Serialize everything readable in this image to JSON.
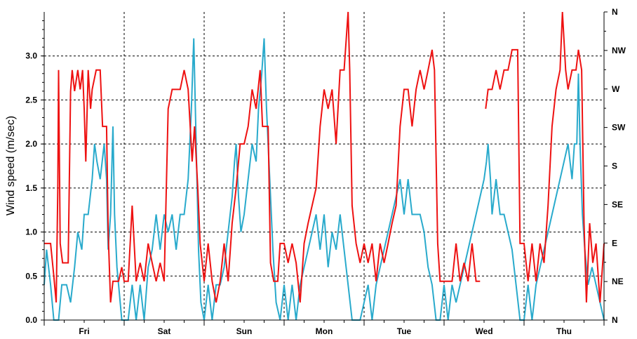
{
  "chart_data": {
    "type": "line",
    "title": "",
    "ylabel": "Wind speed (m/sec)",
    "ylim": [
      0,
      3.5
    ],
    "yticks": [
      0.0,
      0.5,
      1.0,
      1.5,
      2.0,
      2.5,
      3.0
    ],
    "ytick_labels": [
      "0.0",
      "0.5",
      "1.0",
      "1.5",
      "2.0",
      "2.5",
      "3.0"
    ],
    "y2_ticks": [
      "N",
      "NE",
      "E",
      "SE",
      "S",
      "SW",
      "W",
      "NW",
      "N"
    ],
    "y2_range_degrees": [
      0,
      360
    ],
    "xlim_days": [
      0,
      7
    ],
    "days": [
      "Fri",
      "Sat",
      "Sun",
      "Mon",
      "Tue",
      "Wed",
      "Thu"
    ],
    "grid": true,
    "colors": {
      "speed": "#29aacc",
      "direction": "#ee1111"
    },
    "series": [
      {
        "axis": "left",
        "color": "#29aacc",
        "points": [
          [
            0.0,
            0.4
          ],
          [
            0.03,
            0.8
          ],
          [
            0.08,
            0.4
          ],
          [
            0.12,
            0.0
          ],
          [
            0.18,
            0.0
          ],
          [
            0.22,
            0.4
          ],
          [
            0.28,
            0.4
          ],
          [
            0.33,
            0.2
          ],
          [
            0.38,
            0.6
          ],
          [
            0.42,
            1.0
          ],
          [
            0.47,
            0.8
          ],
          [
            0.5,
            1.2
          ],
          [
            0.55,
            1.2
          ],
          [
            0.6,
            1.6
          ],
          [
            0.63,
            2.0
          ],
          [
            0.66,
            1.8
          ],
          [
            0.7,
            1.6
          ],
          [
            0.75,
            2.0
          ],
          [
            0.78,
            1.6
          ],
          [
            0.8,
            0.8
          ],
          [
            0.83,
            1.2
          ],
          [
            0.86,
            2.2
          ],
          [
            0.88,
            1.2
          ],
          [
            0.91,
            0.6
          ],
          [
            0.94,
            0.3
          ],
          [
            0.97,
            0.0
          ],
          [
            1.05,
            0.0
          ],
          [
            1.1,
            0.4
          ],
          [
            1.15,
            0.0
          ],
          [
            1.2,
            0.4
          ],
          [
            1.25,
            0.0
          ],
          [
            1.3,
            0.6
          ],
          [
            1.35,
            0.8
          ],
          [
            1.4,
            1.2
          ],
          [
            1.45,
            0.8
          ],
          [
            1.5,
            1.2
          ],
          [
            1.55,
            1.0
          ],
          [
            1.6,
            1.2
          ],
          [
            1.65,
            0.8
          ],
          [
            1.7,
            1.2
          ],
          [
            1.75,
            1.2
          ],
          [
            1.8,
            1.6
          ],
          [
            1.84,
            2.4
          ],
          [
            1.87,
            3.2
          ],
          [
            1.9,
            2.0
          ],
          [
            1.93,
            0.8
          ],
          [
            1.96,
            0.2
          ],
          [
            2.0,
            0.0
          ],
          [
            2.05,
            0.4
          ],
          [
            2.1,
            0.0
          ],
          [
            2.15,
            0.4
          ],
          [
            2.2,
            0.4
          ],
          [
            2.25,
            0.6
          ],
          [
            2.3,
            1.0
          ],
          [
            2.35,
            1.4
          ],
          [
            2.38,
            1.8
          ],
          [
            2.4,
            2.0
          ],
          [
            2.43,
            1.4
          ],
          [
            2.46,
            1.0
          ],
          [
            2.5,
            1.2
          ],
          [
            2.55,
            1.6
          ],
          [
            2.6,
            2.0
          ],
          [
            2.65,
            1.8
          ],
          [
            2.68,
            2.4
          ],
          [
            2.72,
            2.8
          ],
          [
            2.75,
            3.2
          ],
          [
            2.78,
            2.4
          ],
          [
            2.82,
            1.6
          ],
          [
            2.86,
            0.8
          ],
          [
            2.9,
            0.2
          ],
          [
            2.95,
            0.0
          ],
          [
            3.0,
            0.4
          ],
          [
            3.05,
            0.0
          ],
          [
            3.1,
            0.4
          ],
          [
            3.15,
            0.0
          ],
          [
            3.2,
            0.4
          ],
          [
            3.25,
            0.6
          ],
          [
            3.3,
            0.8
          ],
          [
            3.35,
            1.0
          ],
          [
            3.4,
            1.2
          ],
          [
            3.45,
            0.8
          ],
          [
            3.5,
            1.2
          ],
          [
            3.55,
            0.6
          ],
          [
            3.6,
            1.0
          ],
          [
            3.65,
            0.8
          ],
          [
            3.7,
            1.2
          ],
          [
            3.75,
            0.8
          ],
          [
            3.8,
            0.4
          ],
          [
            3.85,
            0.0
          ],
          [
            3.9,
            0.0
          ],
          [
            3.95,
            0.0
          ],
          [
            4.0,
            0.2
          ],
          [
            4.05,
            0.4
          ],
          [
            4.1,
            0.0
          ],
          [
            4.15,
            0.4
          ],
          [
            4.2,
            0.6
          ],
          [
            4.25,
            0.8
          ],
          [
            4.3,
            1.0
          ],
          [
            4.35,
            1.2
          ],
          [
            4.4,
            1.4
          ],
          [
            4.45,
            1.6
          ],
          [
            4.5,
            1.2
          ],
          [
            4.55,
            1.6
          ],
          [
            4.6,
            1.2
          ],
          [
            4.65,
            1.2
          ],
          [
            4.7,
            1.2
          ],
          [
            4.75,
            1.0
          ],
          [
            4.8,
            0.6
          ],
          [
            4.85,
            0.4
          ],
          [
            4.9,
            0.0
          ],
          [
            4.95,
            0.0
          ],
          [
            5.0,
            0.4
          ],
          [
            5.05,
            0.0
          ],
          [
            5.1,
            0.4
          ],
          [
            5.15,
            0.2
          ],
          [
            5.2,
            0.4
          ],
          [
            5.25,
            0.6
          ],
          [
            5.3,
            0.8
          ],
          [
            5.35,
            1.0
          ],
          [
            5.4,
            1.2
          ],
          [
            5.45,
            1.4
          ],
          [
            5.5,
            1.6
          ],
          [
            5.53,
            1.8
          ],
          [
            5.55,
            2.0
          ],
          [
            5.58,
            1.6
          ],
          [
            5.6,
            1.2
          ],
          [
            5.65,
            1.6
          ],
          [
            5.7,
            1.2
          ],
          [
            5.75,
            1.2
          ],
          [
            5.8,
            1.0
          ],
          [
            5.85,
            0.8
          ],
          [
            5.9,
            0.4
          ],
          [
            5.95,
            0.0
          ],
          [
            6.0,
            0.0
          ],
          [
            6.05,
            0.4
          ],
          [
            6.1,
            0.0
          ],
          [
            6.15,
            0.4
          ],
          [
            6.2,
            0.6
          ],
          [
            6.25,
            0.8
          ],
          [
            6.3,
            1.0
          ],
          [
            6.35,
            1.2
          ],
          [
            6.4,
            1.4
          ],
          [
            6.45,
            1.6
          ],
          [
            6.5,
            1.8
          ],
          [
            6.55,
            2.0
          ],
          [
            6.6,
            1.6
          ],
          [
            6.63,
            2.0
          ],
          [
            6.66,
            2.0
          ],
          [
            6.68,
            2.8
          ],
          [
            6.7,
            2.0
          ],
          [
            6.73,
            1.2
          ],
          [
            6.76,
            0.8
          ],
          [
            6.8,
            0.4
          ],
          [
            6.85,
            0.6
          ],
          [
            6.9,
            0.4
          ],
          [
            6.95,
            0.2
          ],
          [
            7.0,
            0.0
          ]
        ]
      },
      {
        "axis": "right",
        "color": "#ee1111",
        "points": [
          [
            0.0,
            0.87
          ],
          [
            0.08,
            0.87
          ],
          [
            0.12,
            0.5
          ],
          [
            0.15,
            0.2
          ],
          [
            0.17,
            1.5
          ],
          [
            0.18,
            2.84
          ],
          [
            0.2,
            0.87
          ],
          [
            0.23,
            0.65
          ],
          [
            0.3,
            0.65
          ],
          [
            0.33,
            2.6
          ],
          [
            0.35,
            2.84
          ],
          [
            0.38,
            2.6
          ],
          [
            0.42,
            2.84
          ],
          [
            0.45,
            2.62
          ],
          [
            0.48,
            2.84
          ],
          [
            0.5,
            2.4
          ],
          [
            0.52,
            1.8
          ],
          [
            0.55,
            2.84
          ],
          [
            0.58,
            2.4
          ],
          [
            0.6,
            2.62
          ],
          [
            0.65,
            2.84
          ],
          [
            0.7,
            2.84
          ],
          [
            0.73,
            2.2
          ],
          [
            0.78,
            2.2
          ],
          [
            0.8,
            1.0
          ],
          [
            0.83,
            0.2
          ],
          [
            0.86,
            0.44
          ],
          [
            0.93,
            0.44
          ],
          [
            0.97,
            0.6
          ],
          [
            1.0,
            0.44
          ],
          [
            1.05,
            0.44
          ],
          [
            1.1,
            1.3
          ],
          [
            1.15,
            0.44
          ],
          [
            1.2,
            0.65
          ],
          [
            1.25,
            0.44
          ],
          [
            1.3,
            0.87
          ],
          [
            1.35,
            0.65
          ],
          [
            1.4,
            0.44
          ],
          [
            1.45,
            0.65
          ],
          [
            1.5,
            0.44
          ],
          [
            1.55,
            2.4
          ],
          [
            1.6,
            2.62
          ],
          [
            1.7,
            2.62
          ],
          [
            1.75,
            2.84
          ],
          [
            1.8,
            2.62
          ],
          [
            1.85,
            1.8
          ],
          [
            1.88,
            2.2
          ],
          [
            1.92,
            1.5
          ],
          [
            1.95,
            0.87
          ],
          [
            2.0,
            0.44
          ],
          [
            2.05,
            0.87
          ],
          [
            2.1,
            0.44
          ],
          [
            2.15,
            0.2
          ],
          [
            2.2,
            0.44
          ],
          [
            2.25,
            0.87
          ],
          [
            2.3,
            0.44
          ],
          [
            2.35,
            1.1
          ],
          [
            2.4,
            1.5
          ],
          [
            2.45,
            2.0
          ],
          [
            2.5,
            2.0
          ],
          [
            2.55,
            2.2
          ],
          [
            2.6,
            2.62
          ],
          [
            2.65,
            2.4
          ],
          [
            2.7,
            2.84
          ],
          [
            2.73,
            2.2
          ],
          [
            2.78,
            2.2
          ],
          [
            2.8,
            2.2
          ],
          [
            2.83,
            0.65
          ],
          [
            2.87,
            0.44
          ],
          [
            2.92,
            0.44
          ],
          [
            2.95,
            0.87
          ],
          [
            3.0,
            0.87
          ],
          [
            3.05,
            0.65
          ],
          [
            3.1,
            0.87
          ],
          [
            3.15,
            0.65
          ],
          [
            3.2,
            0.2
          ],
          [
            3.25,
            0.87
          ],
          [
            3.3,
            1.1
          ],
          [
            3.35,
            1.3
          ],
          [
            3.4,
            1.5
          ],
          [
            3.45,
            2.2
          ],
          [
            3.5,
            2.62
          ],
          [
            3.55,
            2.4
          ],
          [
            3.6,
            2.62
          ],
          [
            3.65,
            2.0
          ],
          [
            3.7,
            2.84
          ],
          [
            3.75,
            2.84
          ],
          [
            3.8,
            3.5
          ],
          [
            3.82,
            2.84
          ],
          [
            3.85,
            1.3
          ],
          [
            3.9,
            0.87
          ],
          [
            3.95,
            0.65
          ],
          [
            4.0,
            0.87
          ],
          [
            4.05,
            0.65
          ],
          [
            4.1,
            0.87
          ],
          [
            4.15,
            0.44
          ],
          [
            4.2,
            0.87
          ],
          [
            4.25,
            0.65
          ],
          [
            4.3,
            0.87
          ],
          [
            4.35,
            1.1
          ],
          [
            4.4,
            1.3
          ],
          [
            4.45,
            2.2
          ],
          [
            4.5,
            2.62
          ],
          [
            4.55,
            2.62
          ],
          [
            4.6,
            2.2
          ],
          [
            4.65,
            2.62
          ],
          [
            4.7,
            2.84
          ],
          [
            4.75,
            2.62
          ],
          [
            4.8,
            2.84
          ],
          [
            4.85,
            3.07
          ],
          [
            4.88,
            2.84
          ],
          [
            4.92,
            0.87
          ],
          [
            4.95,
            0.44
          ],
          [
            5.0,
            0.44
          ],
          [
            5.1,
            0.44
          ],
          [
            5.15,
            0.87
          ],
          [
            5.2,
            0.44
          ],
          [
            5.25,
            0.65
          ],
          [
            5.3,
            0.44
          ],
          [
            5.35,
            0.87
          ],
          [
            5.4,
            0.44
          ],
          [
            5.45,
            0.44
          ],
          [
            5.5,
            null
          ],
          [
            5.52,
            2.4
          ],
          [
            5.55,
            2.62
          ],
          [
            5.6,
            2.62
          ],
          [
            5.65,
            2.84
          ],
          [
            5.7,
            2.62
          ],
          [
            5.75,
            2.84
          ],
          [
            5.8,
            2.84
          ],
          [
            5.85,
            3.07
          ],
          [
            5.92,
            3.07
          ],
          [
            5.95,
            0.87
          ],
          [
            6.0,
            0.87
          ],
          [
            6.05,
            0.44
          ],
          [
            6.1,
            0.87
          ],
          [
            6.15,
            0.44
          ],
          [
            6.2,
            0.87
          ],
          [
            6.25,
            0.65
          ],
          [
            6.3,
            1.3
          ],
          [
            6.35,
            2.2
          ],
          [
            6.4,
            2.62
          ],
          [
            6.45,
            2.84
          ],
          [
            6.48,
            3.5
          ],
          [
            6.52,
            2.84
          ],
          [
            6.55,
            2.62
          ],
          [
            6.6,
            2.84
          ],
          [
            6.65,
            2.84
          ],
          [
            6.68,
            3.07
          ],
          [
            6.72,
            2.84
          ],
          [
            6.75,
            1.1
          ],
          [
            6.78,
            0.2
          ],
          [
            6.82,
            1.1
          ],
          [
            6.86,
            0.65
          ],
          [
            6.9,
            0.87
          ],
          [
            6.95,
            0.2
          ],
          [
            7.0,
            0.87
          ]
        ]
      }
    ]
  }
}
